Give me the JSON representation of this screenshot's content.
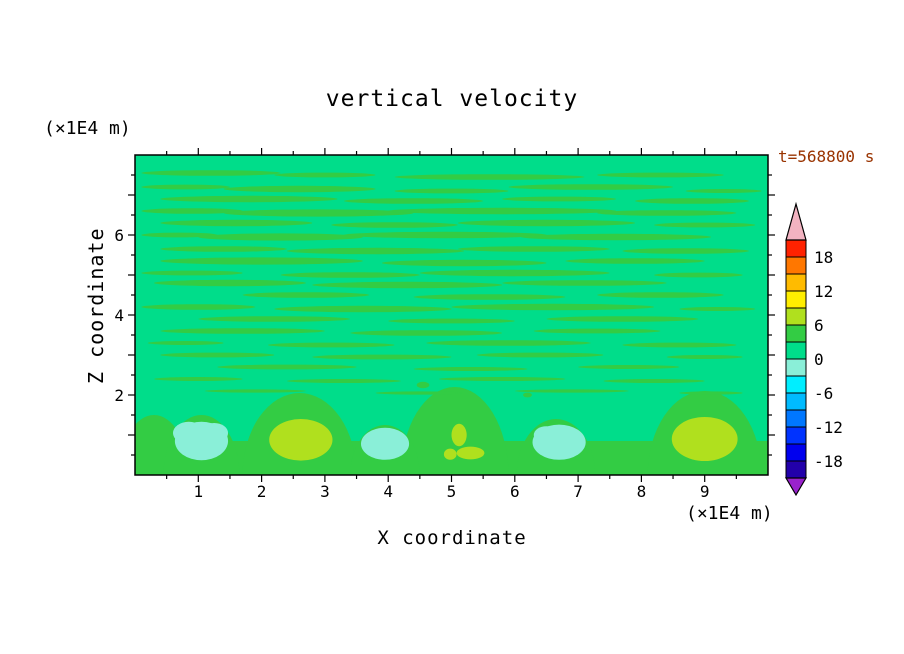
{
  "title": "vertical velocity",
  "time_label": "t=568800 s",
  "colors": {
    "time_label": "#993300",
    "text": "#000000",
    "axis": "#000000"
  },
  "x_axis": {
    "label": "X coordinate",
    "unit": "(×1E4 m)",
    "range": [
      0,
      10
    ],
    "labeled_ticks": [
      1,
      2,
      3,
      4,
      5,
      6,
      7,
      8,
      9
    ],
    "minor_ticks": [
      0.5,
      1.5,
      2.5,
      3.5,
      4.5,
      5.5,
      6.5,
      7.5,
      8.5,
      9.5
    ]
  },
  "y_axis": {
    "label": "Z coordinate",
    "unit": "(×1E4 m)",
    "range": [
      0,
      8
    ],
    "major_ticks": [
      1,
      2,
      3,
      4,
      5,
      6,
      7
    ],
    "labeled_ticks": [
      2,
      4,
      6
    ],
    "minor_ticks": [
      0.5,
      1.5,
      2.5,
      3.5,
      4.5,
      5.5,
      6.5,
      7.5
    ]
  },
  "colorbar": {
    "labels": [
      18,
      12,
      6,
      0,
      -6,
      -12,
      -18
    ],
    "level_step": 3,
    "segment_colors": [
      "#2200AA",
      "#0000EE",
      "#0033FF",
      "#0077FF",
      "#00BBFF",
      "#00EEFF",
      "#8AEFD8",
      "#00DD8A",
      "#33CC44",
      "#B0E01E",
      "#FFEE00",
      "#FFBB00",
      "#FF7700",
      "#FF2200"
    ],
    "top_arrow_color": "#F2B3C1",
    "bottom_arrow_color": "#9922CC"
  },
  "chart_data": {
    "type": "contour",
    "title": "vertical velocity",
    "xlabel": "X coordinate",
    "ylabel": "Z coordinate",
    "x_range": [
      0,
      10
    ],
    "z_range": [
      0,
      8
    ],
    "value_level_step": 3,
    "colors": {
      "background": "#00DD8A",
      "band": "#33CC44",
      "cyan_blob": "#8AEFD8",
      "yellow_blob": "#B0E01E"
    },
    "background_value_range": [
      0,
      3
    ],
    "band_value_range": [
      3,
      6
    ],
    "cyan_value_range": [
      -3,
      0
    ],
    "yellow_value_range": [
      6,
      9
    ],
    "bottom_band_top": 0.85,
    "mounds": [
      [
        2.6,
        0.9,
        2.05
      ],
      [
        5.05,
        0.85,
        2.2
      ],
      [
        9.0,
        0.9,
        2.1
      ],
      [
        0.3,
        0.55,
        1.5
      ],
      [
        6.65,
        0.62,
        1.4
      ],
      [
        3.95,
        0.55,
        1.25
      ],
      [
        1.05,
        0.6,
        1.5
      ]
    ],
    "streaks": [
      [
        1.2,
        7.55,
        1.1,
        0.07
      ],
      [
        3.0,
        7.5,
        0.8,
        0.06
      ],
      [
        5.6,
        7.45,
        1.5,
        0.07
      ],
      [
        8.3,
        7.5,
        1.0,
        0.06
      ],
      [
        0.8,
        7.2,
        0.7,
        0.06
      ],
      [
        2.6,
        7.15,
        1.2,
        0.08
      ],
      [
        5.0,
        7.1,
        0.9,
        0.06
      ],
      [
        7.2,
        7.2,
        1.3,
        0.07
      ],
      [
        9.3,
        7.1,
        0.6,
        0.05
      ],
      [
        1.8,
        6.9,
        1.4,
        0.08
      ],
      [
        4.4,
        6.85,
        1.1,
        0.07
      ],
      [
        6.7,
        6.9,
        0.9,
        0.06
      ],
      [
        8.8,
        6.85,
        0.9,
        0.07
      ],
      [
        0.9,
        6.6,
        0.8,
        0.07
      ],
      [
        2.9,
        6.55,
        1.5,
        0.09
      ],
      [
        5.8,
        6.6,
        1.8,
        0.08
      ],
      [
        8.4,
        6.55,
        1.1,
        0.07
      ],
      [
        1.6,
        6.3,
        1.2,
        0.08
      ],
      [
        4.1,
        6.25,
        1.0,
        0.07
      ],
      [
        6.5,
        6.3,
        1.4,
        0.08
      ],
      [
        9.0,
        6.25,
        0.8,
        0.06
      ],
      [
        0.7,
        6.0,
        0.6,
        0.06
      ],
      [
        2.3,
        5.95,
        1.3,
        0.09
      ],
      [
        4.9,
        6.0,
        1.6,
        0.08
      ],
      [
        7.6,
        5.95,
        1.5,
        0.08
      ],
      [
        1.4,
        5.65,
        1.0,
        0.07
      ],
      [
        3.8,
        5.6,
        1.4,
        0.08
      ],
      [
        6.3,
        5.65,
        1.2,
        0.07
      ],
      [
        8.7,
        5.6,
        1.0,
        0.07
      ],
      [
        2.0,
        5.35,
        1.6,
        0.09
      ],
      [
        5.2,
        5.3,
        1.3,
        0.08
      ],
      [
        7.9,
        5.35,
        1.1,
        0.07
      ],
      [
        0.9,
        5.05,
        0.8,
        0.06
      ],
      [
        3.4,
        5.0,
        1.1,
        0.07
      ],
      [
        6.0,
        5.05,
        1.5,
        0.08
      ],
      [
        8.9,
        5.0,
        0.7,
        0.06
      ],
      [
        1.5,
        4.8,
        1.2,
        0.08
      ],
      [
        4.3,
        4.75,
        1.5,
        0.08
      ],
      [
        7.1,
        4.8,
        1.3,
        0.07
      ],
      [
        2.7,
        4.5,
        1.0,
        0.07
      ],
      [
        5.6,
        4.45,
        1.2,
        0.07
      ],
      [
        8.3,
        4.5,
        1.0,
        0.07
      ],
      [
        1.0,
        4.2,
        0.9,
        0.07
      ],
      [
        3.6,
        4.15,
        1.4,
        0.08
      ],
      [
        6.6,
        4.2,
        1.6,
        0.08
      ],
      [
        9.2,
        4.15,
        0.6,
        0.05
      ],
      [
        2.2,
        3.9,
        1.2,
        0.07
      ],
      [
        5.0,
        3.85,
        1.0,
        0.06
      ],
      [
        7.7,
        3.9,
        1.2,
        0.07
      ],
      [
        1.7,
        3.6,
        1.3,
        0.07
      ],
      [
        4.6,
        3.55,
        1.2,
        0.07
      ],
      [
        7.3,
        3.6,
        1.0,
        0.06
      ],
      [
        0.8,
        3.3,
        0.6,
        0.05
      ],
      [
        3.1,
        3.25,
        1.0,
        0.06
      ],
      [
        5.9,
        3.3,
        1.3,
        0.07
      ],
      [
        8.6,
        3.25,
        0.9,
        0.06
      ],
      [
        1.3,
        3.0,
        0.9,
        0.06
      ],
      [
        3.9,
        2.95,
        1.1,
        0.06
      ],
      [
        6.4,
        3.0,
        1.0,
        0.06
      ],
      [
        9.0,
        2.95,
        0.6,
        0.05
      ],
      [
        2.4,
        2.7,
        1.1,
        0.06
      ],
      [
        5.3,
        2.65,
        0.9,
        0.05
      ],
      [
        7.8,
        2.7,
        0.8,
        0.05
      ],
      [
        1.0,
        2.4,
        0.7,
        0.05
      ],
      [
        3.3,
        2.35,
        0.9,
        0.05
      ],
      [
        5.8,
        2.4,
        1.0,
        0.05
      ],
      [
        8.2,
        2.35,
        0.8,
        0.05
      ],
      [
        1.9,
        2.1,
        0.8,
        0.04
      ],
      [
        4.5,
        2.05,
        0.7,
        0.04
      ],
      [
        6.9,
        2.1,
        0.9,
        0.04
      ],
      [
        9.1,
        2.05,
        0.5,
        0.04
      ],
      [
        4.55,
        2.25,
        0.1,
        0.08
      ],
      [
        6.2,
        2.0,
        0.07,
        0.06
      ]
    ],
    "cyan_blobs": [
      [
        1.05,
        0.85,
        0.42,
        0.48
      ],
      [
        0.85,
        1.05,
        0.25,
        0.28
      ],
      [
        1.25,
        1.05,
        0.22,
        0.25
      ],
      [
        3.95,
        0.78,
        0.38,
        0.4
      ],
      [
        6.7,
        0.82,
        0.42,
        0.44
      ],
      [
        6.5,
        1.0,
        0.2,
        0.22
      ]
    ],
    "yellow_blobs": [
      [
        2.62,
        0.88,
        0.5,
        0.52
      ],
      [
        9.0,
        0.9,
        0.52,
        0.55
      ],
      [
        5.12,
        1.0,
        0.12,
        0.28
      ],
      [
        5.3,
        0.55,
        0.22,
        0.16
      ],
      [
        4.98,
        0.52,
        0.1,
        0.14
      ]
    ]
  }
}
